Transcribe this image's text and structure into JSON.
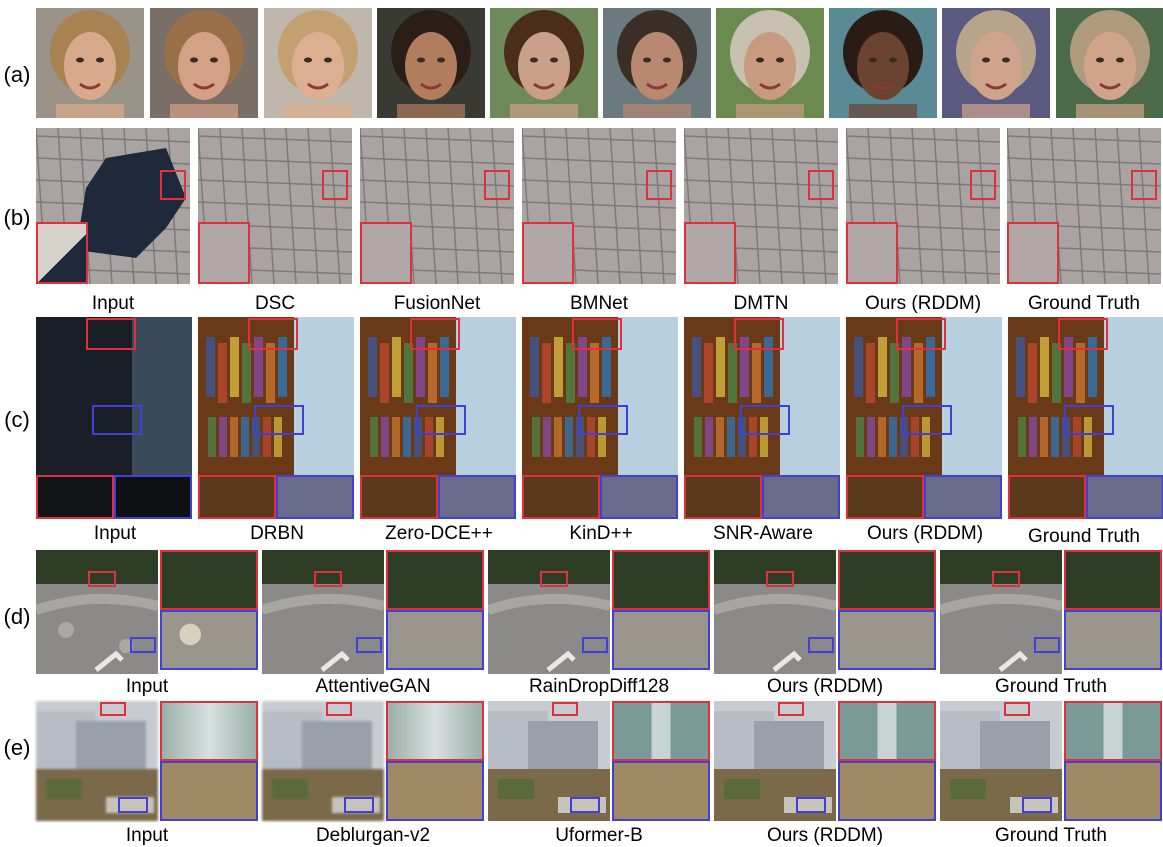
{
  "rows": {
    "a": {
      "label": "(a)",
      "faces": [
        {
          "bg": "#9a9488",
          "hair": "#a88250",
          "skin": "#d8a98a"
        },
        {
          "bg": "#7a6f66",
          "hair": "#9a7048",
          "skin": "#d4a086"
        },
        {
          "bg": "#bfb7ab",
          "hair": "#c4a070",
          "skin": "#dcae92"
        },
        {
          "bg": "#3a3a34",
          "hair": "#2a1e16",
          "skin": "#b07d5e"
        },
        {
          "bg": "#6f8a5a",
          "hair": "#4a2e1a",
          "skin": "#caa08a"
        },
        {
          "bg": "#6a7a7e",
          "hair": "#3a2e26",
          "skin": "#b88870"
        },
        {
          "bg": "#6a8a50",
          "hair": "#c8c0b0",
          "skin": "#c89a80"
        },
        {
          "bg": "#5a8a96",
          "hair": "#2a1c14",
          "skin": "#6a4430"
        },
        {
          "bg": "#5a5a80",
          "hair": "#b8a48a",
          "skin": "#d0a48c"
        },
        {
          "bg": "#4a6a4a",
          "hair": "#b09a7e",
          "skin": "#cfa48a"
        }
      ]
    },
    "b": {
      "label": "(b)",
      "captions": [
        "Input",
        "DSC",
        "FusionNet",
        "BMNet",
        "DMTN",
        "Ours (RDDM)",
        "Ground Truth"
      ],
      "colors": {
        "tile": "#a9a4a2",
        "shadow": "#1e2a3c"
      }
    },
    "c": {
      "label": "(c)",
      "captions": [
        "Input",
        "DRBN",
        "Zero-DCE++",
        "KinD++",
        "SNR-Aware",
        "Ours (RDDM)",
        "Ground Truth"
      ],
      "colors": {
        "dark": "#121418",
        "wood": "#6a3a18",
        "wall": "#b8cfe0"
      }
    },
    "d": {
      "label": "(d)",
      "captions": [
        "Input",
        "AttentiveGAN",
        "RainDropDiff128",
        "Ours (RDDM)",
        "Ground Truth"
      ],
      "colors": {
        "road": "#8c8a88",
        "tree": "#2e3e26"
      }
    },
    "e": {
      "label": "(e)",
      "captions": [
        "Input",
        "Deblurgan-v2",
        "Uformer-B",
        "Ours (RDDM)",
        "Ground Truth"
      ],
      "colors": {
        "building": "#b8bcc4",
        "ground": "#7a6a4a"
      }
    }
  },
  "accent": {
    "red": "#e0303c",
    "blue": "#4040d8"
  }
}
